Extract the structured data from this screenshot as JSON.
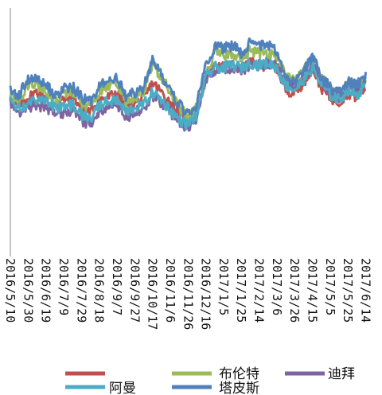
{
  "chart_data": {
    "type": "line",
    "title": "",
    "xlabel": "",
    "ylabel": "",
    "x_ticks": [
      "2016/5/10",
      "2016/5/30",
      "2016/6/19",
      "2016/7/9",
      "2016/7/29",
      "2016/8/18",
      "2016/9/7",
      "2016/9/27",
      "2016/10/17",
      "2016/11/6",
      "2016/11/26",
      "2016/12/16",
      "2017/1/5",
      "2017/1/25",
      "2017/2/14",
      "2017/3/6",
      "2017/3/26",
      "2017/4/15",
      "2017/5/5",
      "2017/5/25",
      "2017/6/14"
    ],
    "x_range": [
      "2016/5/10",
      "2017/6/18"
    ],
    "ylim": [
      0,
      100
    ],
    "grid": false,
    "legend_position": "bottom",
    "anchors_x": [
      "2016/5/10",
      "2016/5/18",
      "2016/5/30",
      "2016/6/8",
      "2016/6/19",
      "2016/7/1",
      "2016/7/9",
      "2016/7/20",
      "2016/7/29",
      "2016/8/8",
      "2016/8/18",
      "2016/8/28",
      "2016/9/7",
      "2016/9/17",
      "2016/9/27",
      "2016/10/7",
      "2016/10/17",
      "2016/10/27",
      "2016/11/6",
      "2016/11/16",
      "2016/11/26",
      "2016/12/6",
      "2016/12/16",
      "2016/12/26",
      "2017/1/5",
      "2017/1/15",
      "2017/1/25",
      "2017/2/4",
      "2017/2/14",
      "2017/2/24",
      "2017/3/6",
      "2017/3/16",
      "2017/3/26",
      "2017/4/5",
      "2017/4/15",
      "2017/4/25",
      "2017/5/5",
      "2017/5/15",
      "2017/5/25",
      "2017/6/4",
      "2017/6/14"
    ],
    "series": [
      {
        "name": "阿曼",
        "color": "#c0504d",
        "values": [
          64,
          60,
          64,
          66,
          64,
          62,
          63,
          64,
          60,
          58,
          63,
          64,
          66,
          60,
          62,
          63,
          70,
          66,
          62,
          58,
          54,
          58,
          72,
          76,
          76,
          77,
          75,
          78,
          77,
          77,
          76,
          67,
          66,
          70,
          76,
          68,
          64,
          62,
          66,
          64,
          68
        ]
      },
      {
        "name": "布伦特",
        "color": "#9bbb59",
        "values": [
          66,
          62,
          69,
          70,
          66,
          62,
          66,
          66,
          62,
          60,
          65,
          69,
          70,
          62,
          64,
          66,
          78,
          72,
          66,
          60,
          56,
          60,
          72,
          82,
          81,
          82,
          80,
          83,
          82,
          82,
          81,
          72,
          71,
          75,
          80,
          72,
          68,
          64,
          69,
          68,
          71
        ]
      },
      {
        "name": "迪拜",
        "color": "#8064a2",
        "values": [
          62,
          58,
          60,
          61,
          60,
          58,
          58,
          59,
          55,
          53,
          58,
          60,
          61,
          56,
          58,
          59,
          65,
          62,
          58,
          54,
          52,
          56,
          71,
          75,
          75,
          76,
          75,
          77,
          77,
          78,
          77,
          70,
          68,
          72,
          77,
          70,
          66,
          64,
          68,
          66,
          70
        ]
      },
      {
        "name": "阿曼_2",
        "color": "#4bacc6",
        "values": [
          63,
          59,
          62,
          63,
          62,
          60,
          60,
          61,
          57,
          55,
          61,
          62,
          63,
          58,
          60,
          61,
          66,
          63,
          59,
          55,
          53,
          57,
          72,
          76,
          76,
          77,
          76,
          78,
          77,
          78,
          76,
          69,
          67,
          71,
          76,
          69,
          65,
          63,
          67,
          65,
          69
        ]
      },
      {
        "name": "塔皮斯",
        "color": "#4f81bd",
        "values": [
          68,
          64,
          71,
          72,
          69,
          64,
          68,
          68,
          64,
          62,
          68,
          71,
          72,
          64,
          66,
          68,
          79,
          73,
          67,
          61,
          58,
          61,
          78,
          84,
          84,
          85,
          82,
          86,
          85,
          85,
          83,
          72,
          70,
          74,
          81,
          72,
          68,
          66,
          70,
          69,
          72
        ]
      }
    ]
  },
  "legend": {
    "items": [
      {
        "label": "",
        "color": "#c0504d",
        "icon": "red-line-icon"
      },
      {
        "label": "布伦特",
        "color": "#9bbb59",
        "icon": "green-line-icon"
      },
      {
        "label": "迪拜",
        "color": "#8064a2",
        "icon": "purple-line-icon"
      },
      {
        "label": "阿曼",
        "color": "#4bacc6",
        "icon": "cyan-line-icon"
      },
      {
        "label": "塔皮斯",
        "color": "#4f81bd",
        "icon": "blue-line-icon"
      }
    ]
  }
}
